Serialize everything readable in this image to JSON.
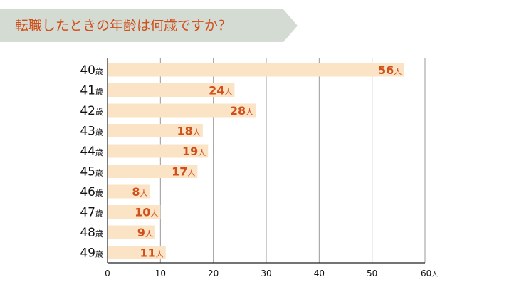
{
  "header": {
    "title": "転職したときの年齢は何歳ですか？"
  },
  "colors": {
    "banner_bg": "#d3dbd3",
    "title_text": "#d0501c",
    "bar_fill": "#fbe3c6",
    "value_label": "#d0501c",
    "grid": "#999999",
    "axis": "#222222"
  },
  "chart_data": {
    "type": "bar",
    "orientation": "horizontal",
    "title": "転職したときの年齢は何歳ですか？",
    "categories": [
      "40",
      "41",
      "42",
      "43",
      "44",
      "45",
      "46",
      "47",
      "48",
      "49"
    ],
    "category_unit": "歳",
    "values": [
      56,
      24,
      28,
      18,
      19,
      17,
      8,
      10,
      9,
      11
    ],
    "value_unit": "人",
    "xlim": [
      0,
      60
    ],
    "x_ticks": [
      0,
      10,
      20,
      30,
      40,
      50,
      60
    ],
    "x_tick_unit": "人",
    "grid": true,
    "legend": "none"
  }
}
